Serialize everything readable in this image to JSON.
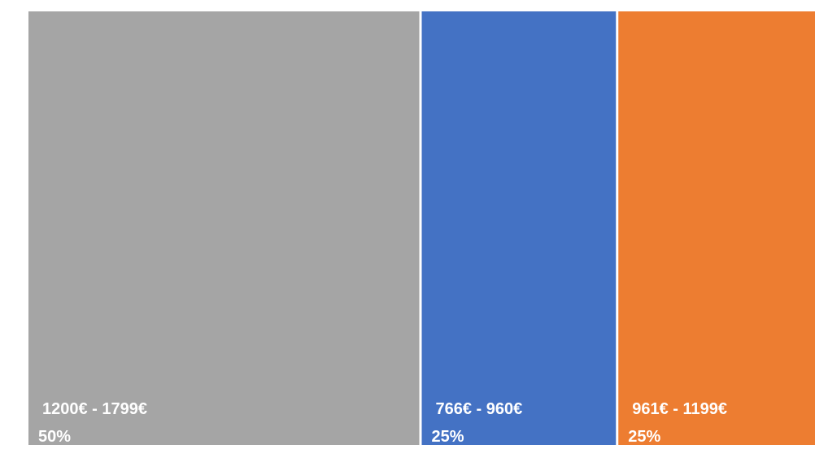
{
  "chart_data": {
    "type": "treemap",
    "title": "",
    "categories": [
      "1200€ - 1799€",
      "766€ - 960€",
      "961€ - 1199€"
    ],
    "values": [
      50,
      25,
      25
    ],
    "value_labels": [
      "50%",
      "25%",
      "25%"
    ],
    "colors": [
      "#a5a5a5",
      "#4472c4",
      "#ed7d31"
    ]
  }
}
